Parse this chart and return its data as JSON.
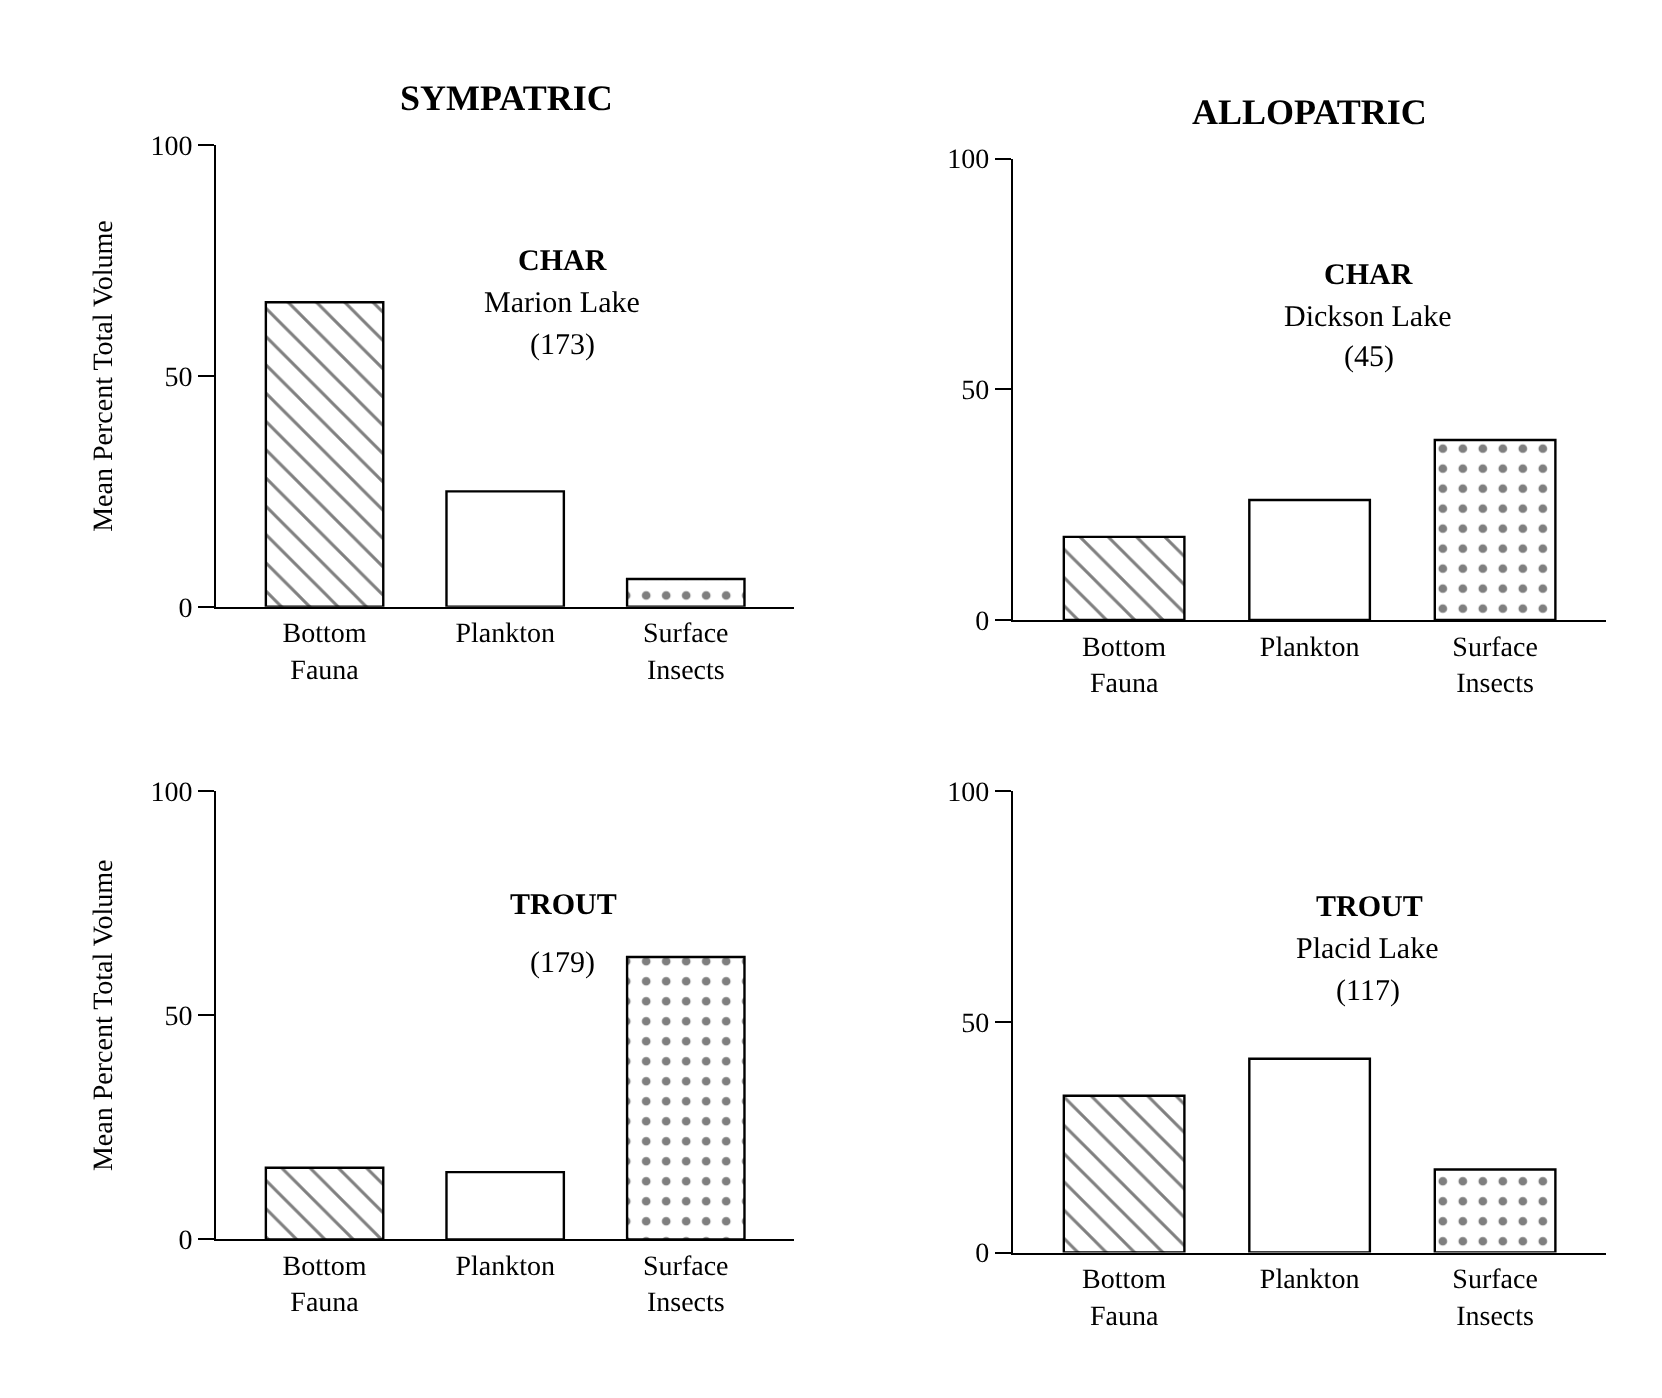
{
  "chart_data": [
    {
      "type": "bar",
      "title": "SYMPATRIC",
      "ylabel": "Mean Percent Total Volume",
      "categories": [
        "Bottom Fauna",
        "Plankton",
        "Surface Insects"
      ],
      "values": [
        66,
        25,
        6
      ],
      "ylim": [
        0,
        100
      ],
      "yticks": [
        0,
        50,
        100
      ],
      "annotations": [
        "CHAR",
        "Marion Lake",
        "(173)"
      ]
    },
    {
      "type": "bar",
      "title": "ALLOPATRIC",
      "categories": [
        "Bottom Fauna",
        "Plankton",
        "Surface Insects"
      ],
      "values": [
        18,
        26,
        39
      ],
      "ylim": [
        0,
        100
      ],
      "yticks": [
        0,
        50,
        100
      ],
      "annotations": [
        "CHAR",
        "Dickson Lake",
        "(45)"
      ]
    },
    {
      "type": "bar",
      "ylabel": "Mean Percent Total Volume",
      "categories": [
        "Bottom Fauna",
        "Plankton",
        "Surface Insects"
      ],
      "values": [
        16,
        15,
        63
      ],
      "ylim": [
        0,
        100
      ],
      "yticks": [
        0,
        50,
        100
      ],
      "annotations": [
        "TROUT",
        "(179)"
      ]
    },
    {
      "type": "bar",
      "categories": [
        "Bottom Fauna",
        "Plankton",
        "Surface Insects"
      ],
      "values": [
        34,
        42,
        18
      ],
      "ylim": [
        0,
        100
      ],
      "yticks": [
        0,
        50,
        100
      ],
      "annotations": [
        "TROUT",
        "Placid Lake",
        "(117)"
      ]
    }
  ]
}
